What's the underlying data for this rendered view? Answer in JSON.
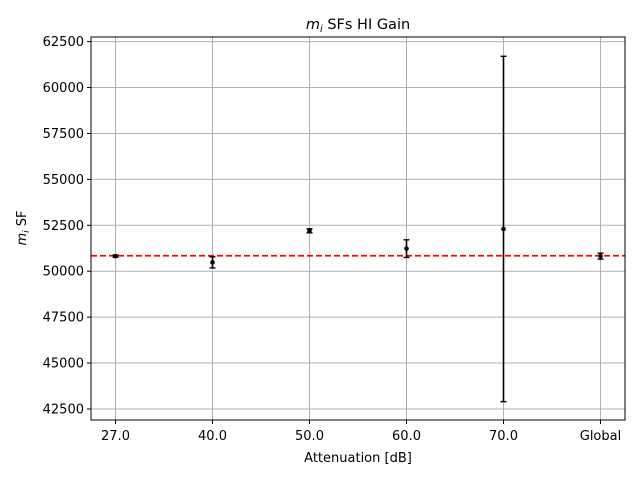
{
  "chart_data": {
    "type": "scatter",
    "title_base": "m",
    "title_sub": "i",
    "title_rest": " SFs HI Gain",
    "xlabel": "Attenuation [dB]",
    "ylabel_base": "m",
    "ylabel_sub": "i",
    "ylabel_rest": " SF",
    "categories": [
      "27.0",
      "40.0",
      "50.0",
      "60.0",
      "70.0",
      "Global"
    ],
    "values": [
      50820,
      50480,
      52200,
      51230,
      52300,
      50820
    ],
    "errors": [
      60,
      300,
      110,
      480,
      9400,
      160
    ],
    "reference_line": {
      "value": 50840,
      "color": "#ff0000",
      "style": "dashed"
    },
    "yticks": [
      42500,
      45000,
      47500,
      50000,
      52500,
      55000,
      57500,
      60000,
      62500
    ],
    "ylim": [
      41900,
      62750
    ],
    "grid": true,
    "marker_color": "#000000"
  }
}
